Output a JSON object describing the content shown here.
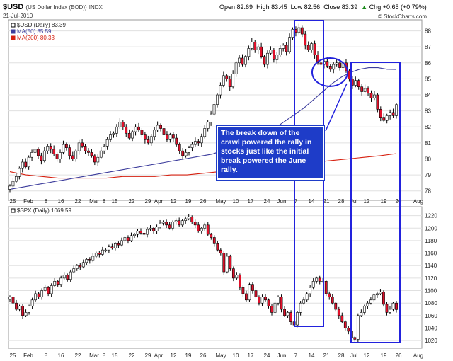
{
  "header": {
    "symbol": "$USD",
    "description": "(US Dollar Index (EOD))",
    "exchange": "INDX",
    "date": "21-Jul-2010",
    "open": "Open 82.69",
    "high": "High 83.45",
    "low": "Low 82.56",
    "close": "Close 83.39",
    "chg": "Chg +0.65 (+0.79%)",
    "chg_arrow": "▲",
    "credit": "© StockCharts.com"
  },
  "colors": {
    "up_candle": "#ffffff",
    "down_candle": "#e0102a",
    "wick": "#000000",
    "ma50": "#3c3c9c",
    "ma200": "#d62010",
    "annotation_box": "#2222dd",
    "annotation_text_bg": "#1e3cc8",
    "grid": "#e0e0e0",
    "panel_border": "#999999"
  },
  "chart_data": [
    {
      "type": "candlestick",
      "title": "$USD (Daily) 83.39",
      "legend": [
        {
          "label": "$USD (Daily) 83.39",
          "color": "#000000"
        },
        {
          "label": "MA(50) 85.59",
          "color": "#3c3c9c"
        },
        {
          "label": "MA(200) 80.33",
          "color": "#d62010"
        }
      ],
      "ylim": [
        77.5,
        88.6
      ],
      "y_ticks": [
        "78",
        "79",
        "80",
        "81",
        "82",
        "83",
        "84",
        "85",
        "86",
        "87",
        "88"
      ],
      "series": [
        {
          "name": "$USD (Daily)",
          "closes": [
            78.3,
            78.6,
            78.9,
            79.4,
            79.8,
            79.5,
            80.1,
            80.4,
            80.6,
            80.2,
            79.9,
            80.5,
            80.8,
            80.6,
            80.3,
            80.0,
            80.4,
            80.9,
            80.7,
            80.2,
            80.0,
            80.5,
            81.0,
            80.8,
            80.5,
            80.4,
            80.2,
            79.8,
            80.1,
            80.5,
            80.8,
            81.2,
            81.5,
            81.6,
            82.0,
            82.3,
            82.0,
            81.6,
            81.3,
            81.7,
            82.0,
            81.8,
            81.5,
            81.2,
            81.0,
            81.4,
            81.8,
            82.1,
            81.9,
            81.5,
            81.2,
            81.5,
            81.3,
            80.9,
            80.5,
            80.2,
            80.4,
            80.7,
            80.9,
            81.1,
            81.0,
            81.4,
            81.9,
            82.3,
            82.8,
            83.4,
            84.0,
            84.6,
            85.2,
            85.0,
            84.5,
            85.3,
            86.0,
            86.3,
            85.9,
            86.4,
            86.9,
            87.3,
            86.8,
            87.0,
            86.4,
            85.9,
            86.6,
            86.8,
            86.2,
            86.5,
            86.9,
            87.1,
            86.7,
            87.6,
            88.1,
            87.9,
            88.2,
            87.8,
            87.1,
            86.8,
            87.2,
            86.5,
            86.0,
            85.9,
            86.1,
            85.8,
            85.6,
            85.9,
            86.0,
            85.7,
            86.0,
            85.5,
            85.0,
            84.6,
            84.9,
            84.5,
            84.2,
            84.4,
            84.1,
            83.8,
            84.0,
            83.1,
            82.6,
            82.4,
            82.7,
            82.9,
            82.7,
            83.39
          ]
        }
      ],
      "ma50": [
        78.1,
        78.2,
        78.3,
        78.4,
        78.5,
        78.6,
        78.7,
        78.8,
        78.9,
        79.0,
        79.1,
        79.2,
        79.3,
        79.4,
        79.5,
        79.6,
        79.7,
        79.8,
        79.9,
        80.0,
        80.1,
        80.2,
        80.3,
        80.5,
        80.7,
        80.9,
        81.1,
        81.4,
        81.7,
        82.0,
        82.4,
        82.8,
        83.2,
        83.7,
        84.2,
        84.7,
        85.1,
        85.4,
        85.6,
        85.7,
        85.7,
        85.6,
        85.59
      ],
      "ma200": [
        79.2,
        79.0,
        78.9,
        78.8,
        78.8,
        78.8,
        78.8,
        78.9,
        78.9,
        78.9,
        79.0,
        79.0,
        79.1,
        79.2,
        79.3,
        79.4,
        79.5,
        79.6,
        79.7,
        79.8,
        79.9,
        80.0,
        80.1,
        80.2,
        80.33
      ],
      "annotation": "The break down of the crawl powered the rally in stocks just like the initial break powered the June rally."
    },
    {
      "type": "candlestick",
      "title": "$SPX (Daily) 1069.59",
      "legend": [
        {
          "label": "$SPX (Daily) 1069.59",
          "color": "#000000"
        }
      ],
      "ylim": [
        1010,
        1232
      ],
      "y_ticks": [
        "1020",
        "1040",
        "1060",
        "1080",
        "1100",
        "1120",
        "1140",
        "1160",
        "1180",
        "1200",
        "1220"
      ],
      "series": [
        {
          "name": "$SPX (Daily)",
          "closes": [
            1090,
            1080,
            1070,
            1075,
            1060,
            1065,
            1075,
            1085,
            1095,
            1090,
            1100,
            1105,
            1095,
            1108,
            1115,
            1110,
            1120,
            1125,
            1118,
            1130,
            1135,
            1140,
            1138,
            1145,
            1150,
            1148,
            1155,
            1160,
            1158,
            1165,
            1165,
            1170,
            1168,
            1175,
            1173,
            1180,
            1185,
            1180,
            1188,
            1190,
            1195,
            1192,
            1190,
            1198,
            1200,
            1195,
            1202,
            1208,
            1210,
            1205,
            1200,
            1210,
            1212,
            1205,
            1212,
            1215,
            1218,
            1210,
            1205,
            1195,
            1200,
            1205,
            1190,
            1185,
            1175,
            1165,
            1160,
            1130,
            1155,
            1135,
            1120,
            1125,
            1105,
            1095,
            1085,
            1110,
            1100,
            1090,
            1080,
            1090,
            1085,
            1075,
            1065,
            1080,
            1090,
            1070,
            1060,
            1065,
            1050,
            1045,
            1065,
            1080,
            1085,
            1095,
            1105,
            1115,
            1120,
            1115,
            1115,
            1095,
            1090,
            1080,
            1070,
            1060,
            1050,
            1040,
            1035,
            1025,
            1022,
            1060,
            1065,
            1075,
            1080,
            1085,
            1093,
            1095,
            1098,
            1078,
            1065,
            1070,
            1080,
            1069.59
          ]
        }
      ],
      "annotation": ""
    }
  ],
  "x_axis_labels": [
    "25",
    "Feb",
    "8",
    "16",
    "22",
    "Mar",
    "8",
    "15",
    "22",
    "29",
    "Apr",
    "12",
    "19",
    "26",
    "May",
    "10",
    "17",
    "24",
    "Jun",
    "7",
    "14",
    "21",
    "28",
    "Jul",
    "12",
    "19",
    "26",
    "Aug"
  ]
}
